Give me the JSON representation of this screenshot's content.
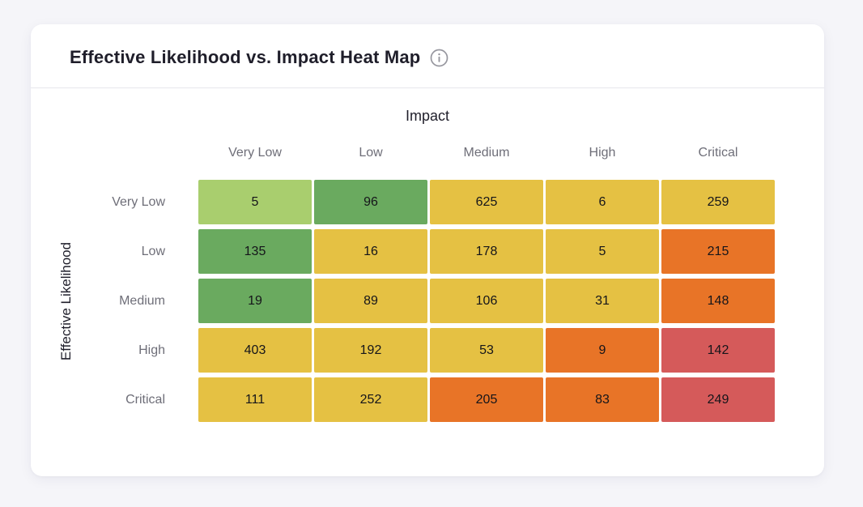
{
  "header": {
    "title": "Effective Likelihood vs. Impact Heat Map",
    "info_icon": "info-icon"
  },
  "chart_data": {
    "type": "heatmap",
    "title": "Effective Likelihood vs. Impact Heat Map",
    "xlabel": "Impact",
    "ylabel": "Effective Likelihood",
    "x_categories": [
      "Very Low",
      "Low",
      "Medium",
      "High",
      "Critical"
    ],
    "y_categories": [
      "Very Low",
      "Low",
      "Medium",
      "High",
      "Critical"
    ],
    "values": [
      [
        5,
        96,
        625,
        6,
        259
      ],
      [
        135,
        16,
        178,
        5,
        215
      ],
      [
        19,
        89,
        106,
        31,
        148
      ],
      [
        403,
        192,
        53,
        9,
        142
      ],
      [
        111,
        252,
        205,
        83,
        249
      ]
    ],
    "cell_colors": [
      [
        "light-green",
        "green",
        "yellow",
        "yellow",
        "yellow"
      ],
      [
        "green",
        "yellow",
        "yellow",
        "yellow",
        "orange"
      ],
      [
        "green",
        "yellow",
        "yellow",
        "yellow",
        "orange"
      ],
      [
        "yellow",
        "yellow",
        "yellow",
        "orange",
        "red"
      ],
      [
        "yellow",
        "yellow",
        "orange",
        "orange",
        "red"
      ]
    ],
    "palette": {
      "light-green": "#a9ce6e",
      "green": "#6aaa5f",
      "yellow": "#e5c143",
      "orange": "#e87427",
      "red": "#d55a5a"
    },
    "legend_position": "none",
    "grid": false
  }
}
